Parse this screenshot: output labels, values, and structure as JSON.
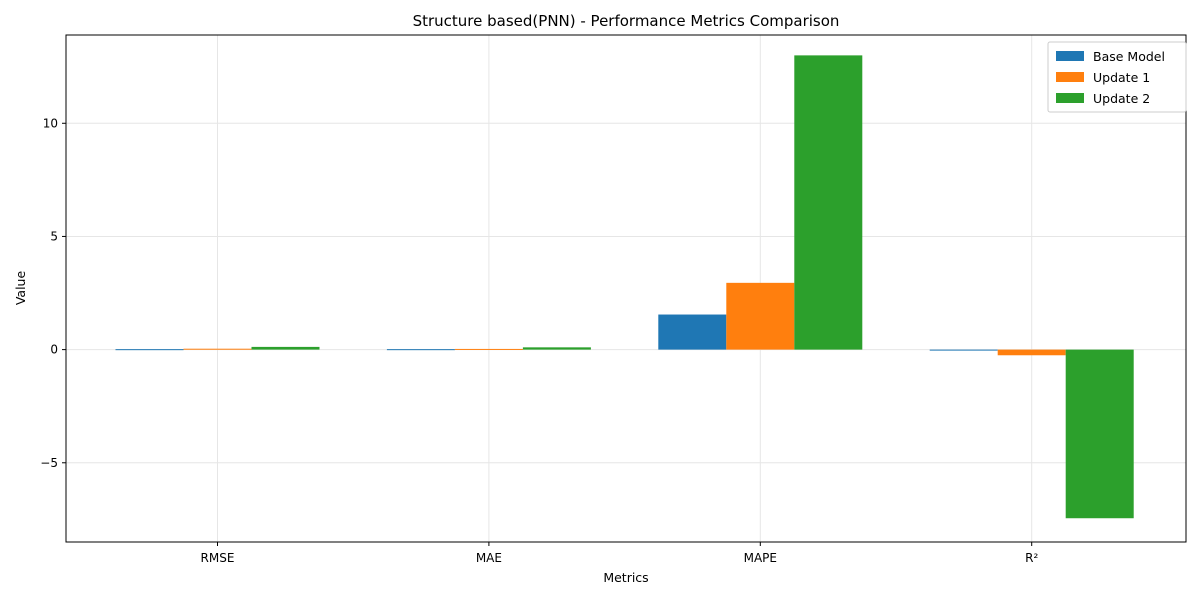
{
  "chart_data": {
    "type": "bar",
    "title": "Structure based(PNN) - Performance Metrics Comparison",
    "xlabel": "Metrics",
    "ylabel": "Value",
    "categories": [
      "RMSE",
      "MAE",
      "MAPE",
      "R²"
    ],
    "series": [
      {
        "name": "Base Model",
        "color": "#1f77b4",
        "values": [
          0.02,
          0.02,
          1.55,
          -0.02
        ]
      },
      {
        "name": "Update 1",
        "color": "#ff7f0e",
        "values": [
          0.04,
          0.03,
          2.95,
          -0.25
        ]
      },
      {
        "name": "Update 2",
        "color": "#2ca02c",
        "values": [
          0.12,
          0.1,
          13.0,
          -7.45
        ]
      }
    ],
    "ylim": [
      -8.5,
      13.9
    ],
    "yticks": [
      -5,
      0,
      5,
      10
    ],
    "ytick_labels": [
      "−5",
      "0",
      "5",
      "10"
    ],
    "grid": true,
    "legend_position": "top-right"
  }
}
